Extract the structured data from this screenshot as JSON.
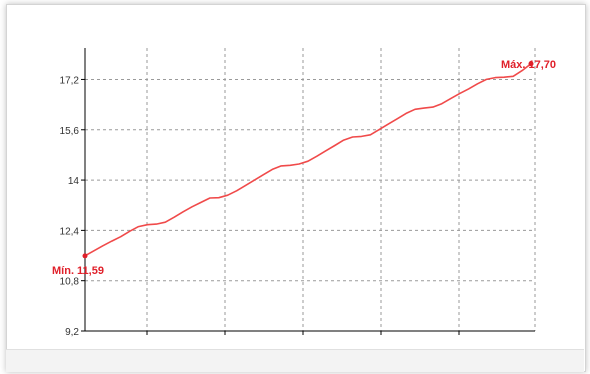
{
  "chart_data": {
    "type": "line",
    "ylim": [
      9.2,
      18.2
    ],
    "y_ticks": [
      "9,2",
      "10,8",
      "12,4",
      "14",
      "15,6",
      "17,2"
    ],
    "y_tick_values": [
      9.2,
      10.8,
      12.4,
      14.0,
      15.6,
      17.2
    ],
    "grid": true,
    "line_color": "#f04a4a",
    "annotation_color": "#e0202a",
    "min_label": "Mín. 11,59",
    "max_label": "Máx. 17,70",
    "series": [
      {
        "values": [
          11.59,
          11.75,
          11.91,
          12.06,
          12.2,
          12.37,
          12.52,
          12.58,
          12.6,
          12.66,
          12.82,
          12.99,
          13.15,
          13.29,
          13.43,
          13.44,
          13.52,
          13.66,
          13.83,
          14.0,
          14.17,
          14.34,
          14.45,
          14.47,
          14.51,
          14.6,
          14.76,
          14.93,
          15.1,
          15.27,
          15.37,
          15.39,
          15.44,
          15.61,
          15.78,
          15.95,
          16.12,
          16.25,
          16.29,
          16.32,
          16.43,
          16.59,
          16.75,
          16.9,
          17.06,
          17.2,
          17.26,
          17.27,
          17.3,
          17.48,
          17.7
        ]
      }
    ]
  }
}
